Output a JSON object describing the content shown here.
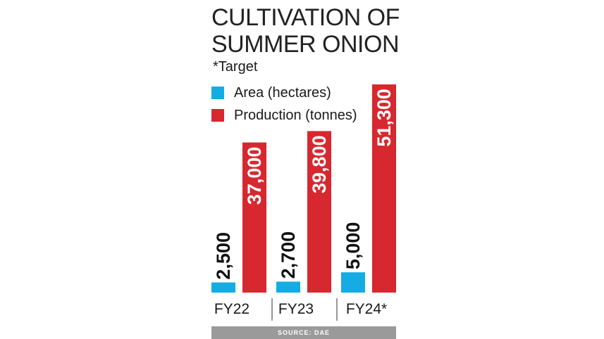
{
  "chart_data": {
    "type": "bar",
    "title": [
      "CULTIVATION OF",
      "SUMMER ONION"
    ],
    "note": "*Target",
    "categories": [
      "FY22",
      "FY23",
      "FY24*"
    ],
    "series": [
      {
        "name": "Area (hectares)",
        "color": "#15ace3",
        "values": [
          2500,
          2700,
          5000
        ],
        "labels": [
          "2,500",
          "2,700",
          "5,000"
        ]
      },
      {
        "name": "Production (tonnes)",
        "color": "#d7282f",
        "values": [
          37000,
          39800,
          51300
        ],
        "labels": [
          "37,000",
          "39,800",
          "51,300"
        ]
      }
    ],
    "ylim": [
      0,
      52000
    ],
    "source": "SOURCE: DAE"
  }
}
